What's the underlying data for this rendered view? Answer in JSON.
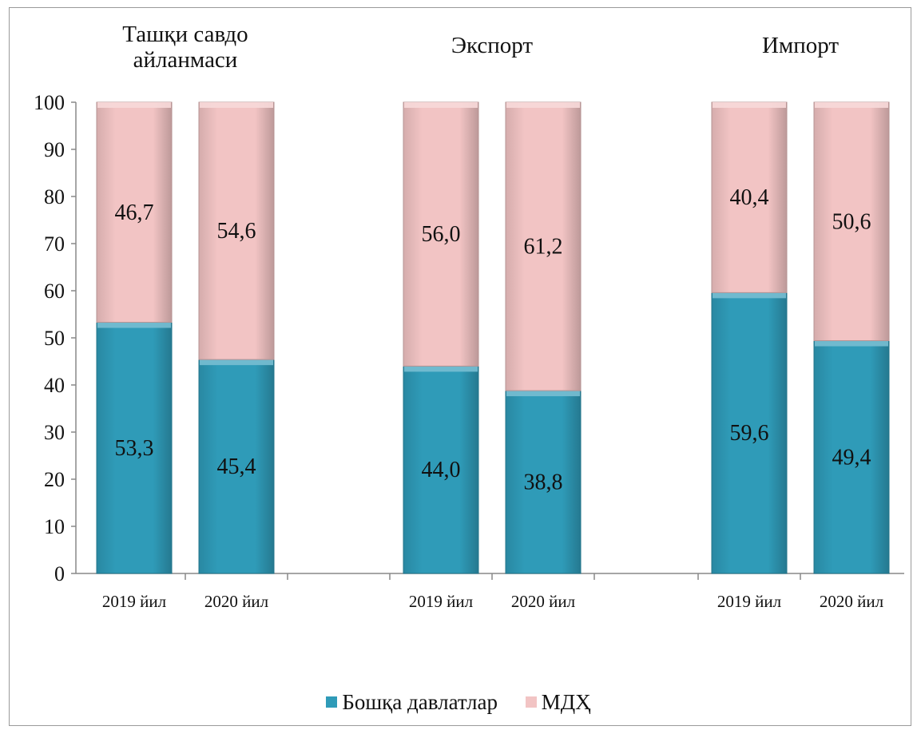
{
  "chart_data": {
    "type": "bar",
    "stacked": true,
    "groups": [
      {
        "title": "Ташқи савдо айланмаси",
        "title_lines": [
          "Ташқи савдо",
          "айланмаси"
        ],
        "categories": [
          "2019 йил",
          "2020 йил"
        ]
      },
      {
        "title": "Экспорт",
        "title_lines": [
          "Экспорт"
        ],
        "categories": [
          "2019 йил",
          "2020 йил"
        ]
      },
      {
        "title": "Импорт",
        "title_lines": [
          "Импорт"
        ],
        "categories": [
          "2019 йил",
          "2020 йил"
        ]
      }
    ],
    "series": [
      {
        "name": "Бошқа давлатлар",
        "color": "#2f9bb8",
        "values": [
          53.3,
          45.4,
          44.0,
          38.8,
          59.6,
          49.4
        ],
        "labels": [
          "53,3",
          "45,4",
          "44,0",
          "38,8",
          "59,6",
          "49,4"
        ]
      },
      {
        "name": "МДҲ",
        "color": "#f2c4c4",
        "values": [
          46.7,
          54.6,
          56.0,
          61.2,
          40.4,
          50.6
        ],
        "labels": [
          "46,7",
          "54,6",
          "56,0",
          "61,2",
          "40,4",
          "50,6"
        ]
      }
    ],
    "ylim": [
      0,
      100
    ],
    "yticks": [
      "0",
      "10",
      "20",
      "30",
      "40",
      "50",
      "60",
      "70",
      "80",
      "90",
      "100"
    ],
    "grid": false,
    "legend_position": "bottom"
  }
}
